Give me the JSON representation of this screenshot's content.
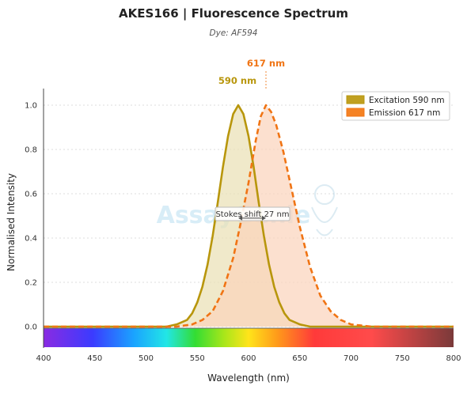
{
  "title": "AKES166  |  Fluorescence Spectrum",
  "subtitle": "Dye: AF594",
  "watermark": "AssayGenie",
  "colors": {
    "excitation_line": "#b8960c",
    "excitation_fill": "#e9dfb3",
    "emission_line": "#f07414",
    "emission_fill": "#fbd3bb",
    "grid": "#dddddd",
    "marker": "#f28a3a"
  },
  "chart_data": {
    "type": "line",
    "xlabel": "Wavelength (nm)",
    "ylabel": "Normalised Intensity",
    "xlim": [
      400,
      800
    ],
    "ylim": [
      -0.09,
      1.1
    ],
    "x_ticks": [
      400,
      450,
      500,
      550,
      600,
      650,
      700,
      750,
      800
    ],
    "y_ticks": [
      0.0,
      0.2,
      0.4,
      0.6,
      0.8,
      1.0
    ],
    "x_tick_labels": [
      "400",
      "450",
      "500",
      "550",
      "600",
      "650",
      "700",
      "750",
      "800"
    ],
    "y_tick_labels": [
      "0.0",
      "0.2",
      "0.4",
      "0.6",
      "0.8",
      "1.0"
    ],
    "grid": true,
    "legend_position": "top-right",
    "series": [
      {
        "name": "Excitation",
        "legend_label": "Excitation  590 nm",
        "peak_label": "590 nm",
        "style": "solid",
        "x": [
          400,
          520,
          530,
          540,
          545,
          550,
          555,
          560,
          565,
          570,
          575,
          580,
          585,
          590,
          595,
          600,
          605,
          610,
          615,
          620,
          625,
          630,
          635,
          640,
          650,
          660,
          800
        ],
        "y": [
          0,
          0.0,
          0.01,
          0.03,
          0.06,
          0.11,
          0.18,
          0.28,
          0.41,
          0.56,
          0.72,
          0.86,
          0.96,
          1.0,
          0.96,
          0.86,
          0.72,
          0.56,
          0.41,
          0.28,
          0.18,
          0.11,
          0.06,
          0.03,
          0.01,
          0.0,
          0
        ]
      },
      {
        "name": "Emission",
        "legend_label": "Emission  617 nm",
        "peak_label": "617 nm",
        "style": "dashed",
        "x": [
          400,
          530,
          545,
          555,
          565,
          575,
          585,
          592,
          600,
          607,
          612,
          617,
          622,
          627,
          634,
          642,
          650,
          660,
          670,
          680,
          690,
          700,
          710,
          720,
          800
        ],
        "y": [
          0,
          0.0,
          0.01,
          0.03,
          0.07,
          0.16,
          0.31,
          0.46,
          0.65,
          0.84,
          0.95,
          1.0,
          0.97,
          0.91,
          0.79,
          0.62,
          0.45,
          0.27,
          0.14,
          0.07,
          0.03,
          0.01,
          0.005,
          0.0,
          0
        ]
      }
    ],
    "annotation": {
      "text": "Stokes shift  27 nm",
      "from": 590,
      "to": 617,
      "y": 0.44
    }
  }
}
